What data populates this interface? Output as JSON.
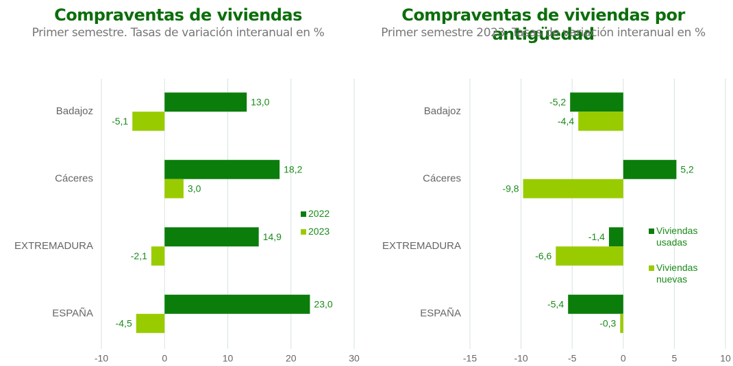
{
  "chart_data": [
    {
      "type": "bar",
      "orientation": "horizontal",
      "title": "Compraventas de viviendas",
      "subtitle": "Primer semestre. Tasas de variación interanual en %",
      "categories": [
        "Badajoz",
        "Cáceres",
        "EXTREMADURA",
        "ESPAÑA"
      ],
      "series": [
        {
          "name": "2022",
          "color": "#0b7d0b",
          "values": [
            13.0,
            18.2,
            14.9,
            23.0
          ],
          "value_labels": [
            "13,0",
            "18,2",
            "14,9",
            "23,0"
          ]
        },
        {
          "name": "2023",
          "color": "#99cc00",
          "values": [
            -5.1,
            3.0,
            -2.1,
            -4.5
          ],
          "value_labels": [
            "-5,1",
            "3,0",
            "-2,1",
            "-4,5"
          ]
        }
      ],
      "xlim": [
        -10,
        30
      ],
      "xticks": [
        -10,
        0,
        10,
        20,
        30
      ],
      "grid": true,
      "legend": "right"
    },
    {
      "type": "bar",
      "orientation": "horizontal",
      "title": "Compraventas de viviendas por antigüedad",
      "subtitle": "Primer semestre 2023. Tasas de variación interanual en %",
      "categories": [
        "Badajoz",
        "Cáceres",
        "EXTREMADURA",
        "ESPAÑA"
      ],
      "series": [
        {
          "name": "Viviendas usadas",
          "color": "#0b7d0b",
          "values": [
            -5.2,
            5.2,
            -1.4,
            -5.4
          ],
          "value_labels": [
            "-5,2",
            "5,2",
            "-1,4",
            "-5,4"
          ]
        },
        {
          "name": "Viviendas nuevas",
          "color": "#99cc00",
          "values": [
            -4.4,
            -9.8,
            -6.6,
            -0.3
          ],
          "value_labels": [
            "-4,4",
            "-9,8",
            "-6,6",
            "-0,3"
          ]
        }
      ],
      "xlim": [
        -15,
        10
      ],
      "xticks": [
        -15,
        -10,
        -5,
        0,
        5,
        10
      ],
      "grid": true,
      "legend": "right"
    }
  ]
}
